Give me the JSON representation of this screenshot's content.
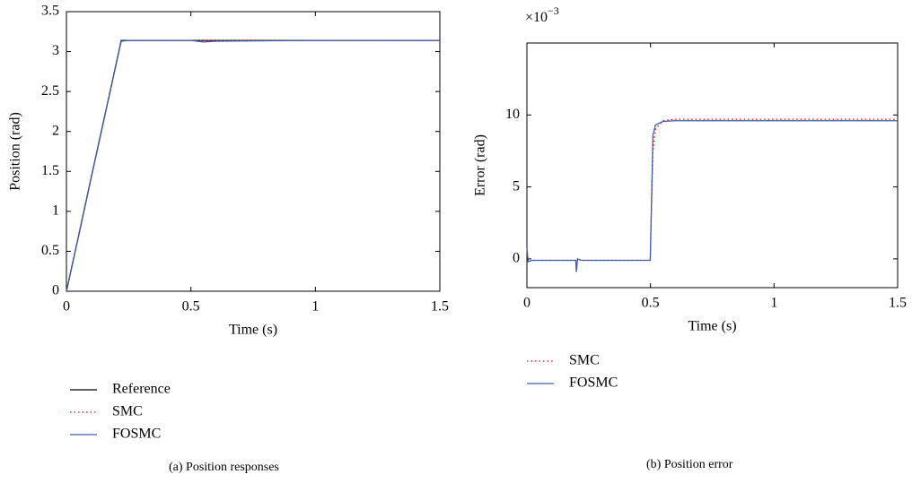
{
  "chart_data": [
    {
      "type": "line",
      "caption": "(a) Position responses",
      "xlabel": "Time (s)",
      "ylabel": "Position (rad)",
      "xlim": [
        0,
        1.5
      ],
      "xticks": [
        0,
        0.5,
        1,
        1.5
      ],
      "ylim": [
        0,
        3.5
      ],
      "yticks": [
        0,
        0.5,
        1,
        1.5,
        2,
        2.5,
        3,
        3.5
      ],
      "x": [
        0,
        0.05,
        0.1,
        0.15,
        0.2,
        0.22,
        0.25,
        0.5,
        0.55,
        0.6,
        1,
        1.5
      ],
      "series": [
        {
          "name": "Reference",
          "color": "#000000",
          "linestyle": "solid",
          "values": [
            0,
            0.71,
            1.43,
            2.14,
            2.85,
            3.14,
            3.14,
            3.14,
            3.14,
            3.14,
            3.14,
            3.14
          ]
        },
        {
          "name": "SMC",
          "color": "#ff0000",
          "linestyle": "dotted",
          "values": [
            0,
            0.71,
            1.43,
            2.14,
            2.85,
            3.13,
            3.14,
            3.14,
            3.14,
            3.14,
            3.14,
            3.14
          ]
        },
        {
          "name": "FOSMC",
          "color": "#3a5fa8",
          "linestyle": "solid",
          "values": [
            0,
            0.71,
            1.43,
            2.14,
            2.85,
            3.13,
            3.14,
            3.14,
            3.12,
            3.13,
            3.14,
            3.14
          ]
        }
      ]
    },
    {
      "type": "line",
      "caption": "(b) Position error",
      "xlabel": "Time (s)",
      "ylabel": "Error (rad)",
      "y_multiplier": {
        "base": "×10",
        "exponent": "−3"
      },
      "xlim": [
        0,
        1.5
      ],
      "xticks": [
        0,
        0.5,
        1,
        1.5
      ],
      "ylim": [
        -2,
        15
      ],
      "yticks": [
        0,
        5,
        10
      ],
      "x": [
        0,
        0.005,
        0.02,
        0.19,
        0.198,
        0.2,
        0.205,
        0.22,
        0.25,
        0.499,
        0.51,
        0.52,
        0.55,
        0.6,
        1.5
      ],
      "series": [
        {
          "name": "SMC",
          "color": "#ff0000",
          "linestyle": "dotted",
          "values": [
            0.8,
            -0.2,
            -0.1,
            -0.1,
            -0.1,
            -0.9,
            0,
            -0.1,
            -0.1,
            -0.1,
            7.5,
            9.0,
            9.6,
            9.7,
            9.7
          ]
        },
        {
          "name": "FOSMC",
          "color": "#3a5fa8",
          "linestyle": "solid",
          "values": [
            0.8,
            -0.2,
            -0.1,
            -0.1,
            -0.1,
            -0.9,
            0,
            -0.1,
            -0.1,
            -0.1,
            8.6,
            9.3,
            9.55,
            9.6,
            9.6
          ]
        }
      ]
    }
  ]
}
